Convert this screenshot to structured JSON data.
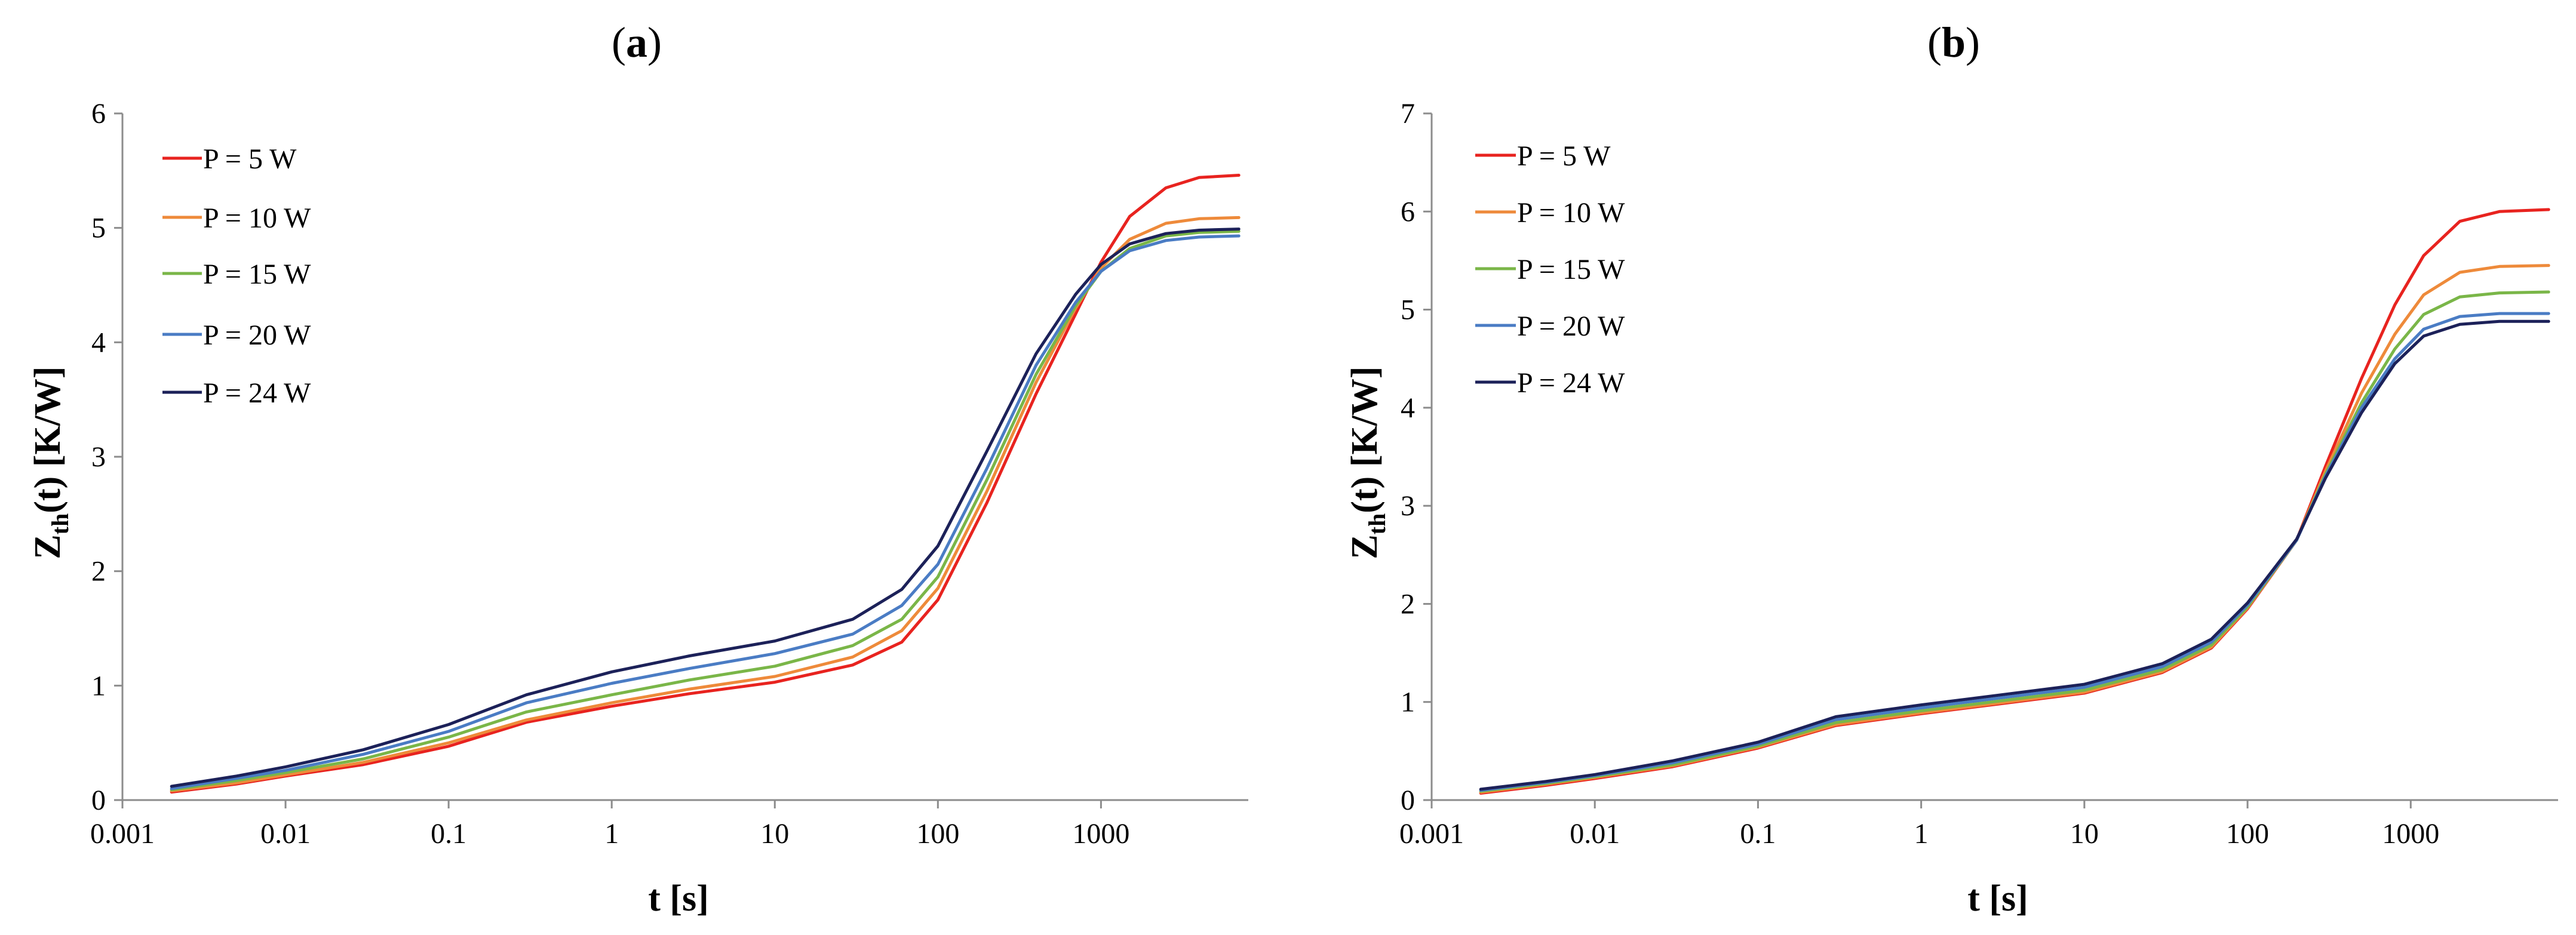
{
  "chart_data": [
    {
      "type": "line",
      "panel_label": "a",
      "title": "(a)",
      "xlabel": "t [s]",
      "ylabel_main": "Z",
      "ylabel_sub": "th",
      "ylabel_rest": "(t) [K/W]",
      "xscale": "log",
      "xlim": [
        0.001,
        8000
      ],
      "ylim": [
        0,
        6
      ],
      "x_ticks": [
        0.001,
        0.01,
        0.1,
        1,
        10,
        100,
        1000
      ],
      "x_tick_labels": [
        "0.001",
        "0.01",
        "0.1",
        "1",
        "10",
        "100",
        "1000"
      ],
      "y_ticks": [
        0,
        1,
        2,
        3,
        4,
        5,
        6
      ],
      "y_tick_labels": [
        "0",
        "1",
        "2",
        "3",
        "4",
        "5",
        "6"
      ],
      "grid": false,
      "legend_position": "top-left",
      "x": [
        0.002,
        0.005,
        0.01,
        0.03,
        0.1,
        0.3,
        1,
        3,
        10,
        30,
        60,
        100,
        200,
        400,
        700,
        1000,
        1500,
        2500,
        4000,
        7000
      ],
      "series": [
        {
          "name": "P = 5 W",
          "color": "#e8231f",
          "values": [
            0.07,
            0.14,
            0.21,
            0.31,
            0.47,
            0.68,
            0.82,
            0.93,
            1.03,
            1.18,
            1.38,
            1.75,
            2.6,
            3.55,
            4.25,
            4.7,
            5.1,
            5.35,
            5.44,
            5.46
          ]
        },
        {
          "name": "P = 10 W",
          "color": "#ee8a3a",
          "values": [
            0.08,
            0.15,
            0.22,
            0.33,
            0.5,
            0.7,
            0.85,
            0.97,
            1.08,
            1.25,
            1.48,
            1.85,
            2.7,
            3.65,
            4.3,
            4.65,
            4.9,
            5.04,
            5.08,
            5.09
          ]
        },
        {
          "name": "P = 15 W",
          "color": "#7ab648",
          "values": [
            0.09,
            0.17,
            0.24,
            0.36,
            0.55,
            0.77,
            0.92,
            1.05,
            1.17,
            1.35,
            1.58,
            1.95,
            2.8,
            3.72,
            4.32,
            4.62,
            4.82,
            4.93,
            4.96,
            4.97
          ]
        },
        {
          "name": "P = 20 W",
          "color": "#4a7cc4",
          "values": [
            0.1,
            0.19,
            0.26,
            0.4,
            0.6,
            0.85,
            1.02,
            1.15,
            1.28,
            1.45,
            1.7,
            2.06,
            2.9,
            3.8,
            4.35,
            4.62,
            4.8,
            4.89,
            4.92,
            4.93
          ]
        },
        {
          "name": "P = 24 W",
          "color": "#1c2159",
          "values": [
            0.12,
            0.21,
            0.29,
            0.44,
            0.66,
            0.92,
            1.12,
            1.26,
            1.39,
            1.58,
            1.84,
            2.22,
            3.05,
            3.9,
            4.42,
            4.68,
            4.86,
            4.95,
            4.98,
            4.99
          ]
        }
      ]
    },
    {
      "type": "line",
      "panel_label": "b",
      "title": "(b)",
      "xlabel": "t [s]",
      "ylabel_main": "Z",
      "ylabel_sub": "th",
      "ylabel_rest": "(t) [K/W]",
      "xscale": "log",
      "xlim": [
        0.001,
        8000
      ],
      "ylim": [
        0,
        7
      ],
      "x_ticks": [
        0.001,
        0.01,
        0.1,
        1,
        10,
        100,
        1000
      ],
      "x_tick_labels": [
        "0.001",
        "0.01",
        "0.1",
        "1",
        "10",
        "100",
        "1000"
      ],
      "y_ticks": [
        0,
        1,
        2,
        3,
        4,
        5,
        6,
        7
      ],
      "y_tick_labels": [
        "0",
        "1",
        "2",
        "3",
        "4",
        "5",
        "6",
        "7"
      ],
      "grid": false,
      "legend_position": "top-left",
      "x": [
        0.002,
        0.005,
        0.01,
        0.03,
        0.1,
        0.3,
        1,
        3,
        10,
        30,
        60,
        100,
        200,
        300,
        500,
        800,
        1200,
        2000,
        3500,
        7000
      ],
      "series": [
        {
          "name": "P = 5 W",
          "color": "#e8231f",
          "values": [
            0.07,
            0.15,
            0.22,
            0.34,
            0.53,
            0.76,
            0.88,
            0.98,
            1.09,
            1.3,
            1.55,
            1.95,
            2.65,
            3.4,
            4.3,
            5.05,
            5.55,
            5.9,
            6.0,
            6.02
          ]
        },
        {
          "name": "P = 10 W",
          "color": "#ee8a3a",
          "values": [
            0.08,
            0.16,
            0.23,
            0.35,
            0.54,
            0.77,
            0.89,
            0.99,
            1.1,
            1.31,
            1.56,
            1.96,
            2.65,
            3.35,
            4.15,
            4.75,
            5.15,
            5.38,
            5.44,
            5.45
          ]
        },
        {
          "name": "P = 15 W",
          "color": "#7ab648",
          "values": [
            0.09,
            0.17,
            0.24,
            0.36,
            0.55,
            0.79,
            0.91,
            1.01,
            1.12,
            1.33,
            1.58,
            1.97,
            2.65,
            3.32,
            4.05,
            4.6,
            4.95,
            5.13,
            5.17,
            5.18
          ]
        },
        {
          "name": "P = 20 W",
          "color": "#4a7cc4",
          "values": [
            0.1,
            0.18,
            0.25,
            0.38,
            0.57,
            0.82,
            0.94,
            1.04,
            1.15,
            1.36,
            1.61,
            1.99,
            2.65,
            3.3,
            4.0,
            4.5,
            4.8,
            4.93,
            4.96,
            4.96
          ]
        },
        {
          "name": "P = 24 W",
          "color": "#1c2159",
          "values": [
            0.11,
            0.19,
            0.26,
            0.4,
            0.59,
            0.85,
            0.97,
            1.07,
            1.18,
            1.39,
            1.64,
            2.01,
            2.66,
            3.28,
            3.95,
            4.45,
            4.73,
            4.85,
            4.88,
            4.88
          ]
        }
      ]
    }
  ]
}
